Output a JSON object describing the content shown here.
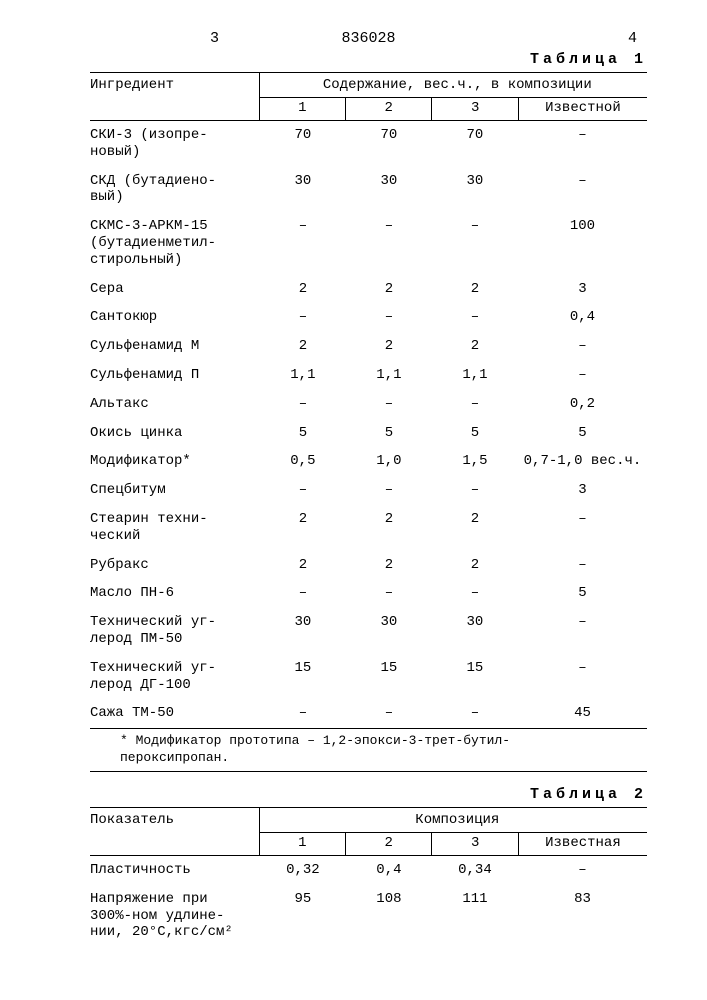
{
  "top": {
    "left_num": "3",
    "center_num": "836028",
    "right_num": "4"
  },
  "table1": {
    "caption": "Таблица 1",
    "header_ingredient": "Ингредиент",
    "header_content": "Содержание, вес.ч., в композиции",
    "subheader_cols": [
      "1",
      "2",
      "3",
      "Известной"
    ],
    "rows": [
      {
        "name": "СКИ-3 (изопре-\nновый)",
        "vals": [
          "70",
          "70",
          "70",
          "–"
        ]
      },
      {
        "name": "СКД (бутадиено-\nвый)",
        "vals": [
          "30",
          "30",
          "30",
          "–"
        ]
      },
      {
        "name": "СКМС-3-АРКМ-15\n(бутадиенметил-\nстирольный)",
        "vals": [
          "–",
          "–",
          "–",
          "100"
        ]
      },
      {
        "name": "Сера",
        "vals": [
          "2",
          "2",
          "2",
          "3"
        ]
      },
      {
        "name": "Сантокюр",
        "vals": [
          "–",
          "–",
          "–",
          "0,4"
        ]
      },
      {
        "name": "Сульфенамид М",
        "vals": [
          "2",
          "2",
          "2",
          "–"
        ]
      },
      {
        "name": "Сульфенамид П",
        "vals": [
          "1,1",
          "1,1",
          "1,1",
          "–"
        ]
      },
      {
        "name": "Альтакс",
        "vals": [
          "–",
          "–",
          "–",
          "0,2"
        ]
      },
      {
        "name": "Окись цинка",
        "vals": [
          "5",
          "5",
          "5",
          "5"
        ]
      },
      {
        "name": "Модификатор*",
        "vals": [
          "0,5",
          "1,0",
          "1,5",
          "0,7-1,0 вес.ч."
        ]
      },
      {
        "name": "Спецбитум",
        "vals": [
          "–",
          "–",
          "–",
          "3"
        ]
      },
      {
        "name": "Стеарин техни-\nческий",
        "vals": [
          "2",
          "2",
          "2",
          "–"
        ]
      },
      {
        "name": "Рубракс",
        "vals": [
          "2",
          "2",
          "2",
          "–"
        ]
      },
      {
        "name": "Масло ПН-6",
        "vals": [
          "–",
          "–",
          "–",
          "5"
        ]
      },
      {
        "name": "Технический уг-\nлерод ПМ-50",
        "vals": [
          "30",
          "30",
          "30",
          "–"
        ]
      },
      {
        "name": "Технический уг-\nлерод ДГ-100",
        "vals": [
          "15",
          "15",
          "15",
          "–"
        ]
      },
      {
        "name": "Сажа ТМ-50",
        "vals": [
          "–",
          "–",
          "–",
          "45"
        ]
      }
    ],
    "footnote": "* Модификатор прототипа – 1,2-эпокси-3-трет-бутил-\n  пероксипропан."
  },
  "table2": {
    "caption": "Таблица 2",
    "header_indicator": "Показатель",
    "header_composition": "Композиция",
    "subheader_cols": [
      "1",
      "2",
      "3",
      "Известная"
    ],
    "rows": [
      {
        "name": "Пластичность",
        "vals": [
          "0,32",
          "0,4",
          "0,34",
          "–"
        ]
      },
      {
        "name": "Напряжение при\n300%-ном удлине-\nнии, 20°С,кгс/см²",
        "vals": [
          "95",
          "108",
          "111",
          "83"
        ]
      }
    ]
  }
}
